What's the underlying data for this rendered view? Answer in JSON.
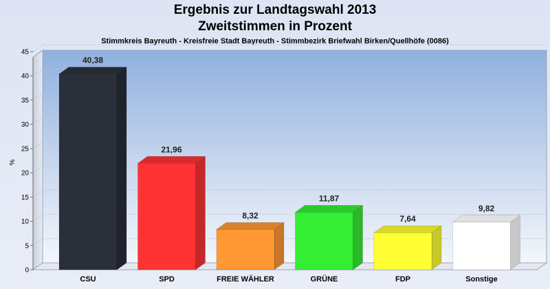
{
  "chart_data": {
    "type": "bar",
    "title": "Ergebnis zur Landtagswahl 2013",
    "title_line2": "Zweitstimmen in Prozent",
    "subtitle": "Stimmkreis Bayreuth - Kreisfreie Stadt Bayreuth - Stimmbezirk Briefwahl Birken/Quellhöfe (0086)",
    "xlabel": "",
    "ylabel": "%",
    "ylim": [
      0,
      45
    ],
    "yticks": [
      0,
      5,
      10,
      15,
      20,
      25,
      30,
      35,
      40,
      45
    ],
    "grid": true,
    "categories": [
      "CSU",
      "SPD",
      "FREIE WÄHLER",
      "GRÜNE",
      "FDP",
      "Sonstige"
    ],
    "values": [
      40.38,
      21.96,
      8.32,
      11.87,
      7.64,
      9.82
    ],
    "value_labels": [
      "40,38",
      "21,96",
      "8,32",
      "11,87",
      "7,64",
      "9,82"
    ],
    "colors": [
      "#2b2f3a",
      "#ff3333",
      "#ff9933",
      "#33ee33",
      "#ffff33",
      "#ffffff"
    ],
    "side_colors": [
      "#1f232c",
      "#c42828",
      "#c97628",
      "#28b828",
      "#c8c828",
      "#c8c8c8"
    ],
    "top_colors": [
      "#262a33",
      "#d92b2b",
      "#d98229",
      "#2ccb2c",
      "#d9d92b",
      "#e0e0e0"
    ]
  }
}
